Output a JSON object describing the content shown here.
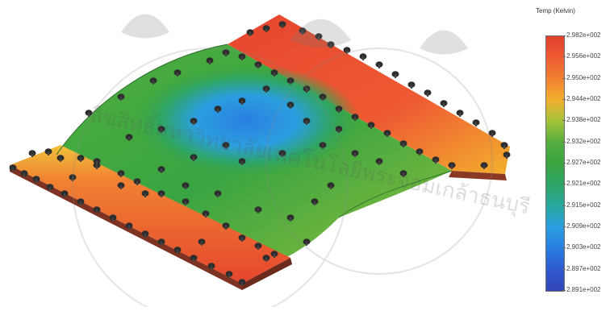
{
  "legend": {
    "title": "Temp (Kelvin)",
    "ticks": [
      "2.982e+002",
      "2.956e+002",
      "2.950e+002",
      "2.944e+002",
      "2.938e+002",
      "2.932e+002",
      "2.927e+002",
      "2.921e+002",
      "2.915e+002",
      "2.909e+002",
      "2.903e+002",
      "2.897e+002",
      "2.891e+002"
    ]
  },
  "watermark": {
    "text": "ลิขสิทธิ์มหาวิทยาลัยเทคโนโลยีพระจอมเกล้าธนบุรี"
  },
  "colors": {
    "hot": "#e64a2e",
    "warm": "#f3b02e",
    "mid": "#3aa440",
    "cool": "#2b9ee0",
    "cold": "#3145b3",
    "pin": "#2e2e2e"
  }
}
